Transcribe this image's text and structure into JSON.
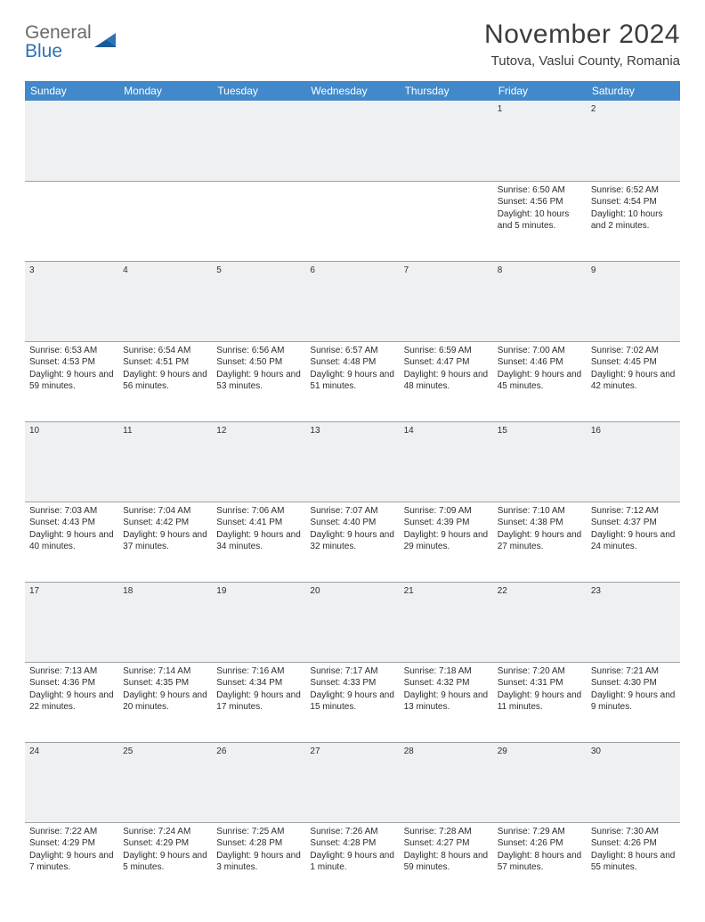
{
  "header": {
    "logo_general": "General",
    "logo_blue": "Blue",
    "month_title": "November 2024",
    "location": "Tutova, Vaslui County, Romania"
  },
  "theme": {
    "header_bg": "#4189ca",
    "header_text": "#ffffff",
    "daynum_bg": "#eef0f2",
    "border_color": "#9aa2aa",
    "logo_gray": "#6a6a6a",
    "logo_blue": "#2d73b5"
  },
  "weekdays": [
    "Sunday",
    "Monday",
    "Tuesday",
    "Wednesday",
    "Thursday",
    "Friday",
    "Saturday"
  ],
  "weeks": [
    {
      "nums": [
        "",
        "",
        "",
        "",
        "",
        "1",
        "2"
      ],
      "cells": [
        null,
        null,
        null,
        null,
        null,
        {
          "sunrise": "Sunrise: 6:50 AM",
          "sunset": "Sunset: 4:56 PM",
          "daylight": "Daylight: 10 hours and 5 minutes."
        },
        {
          "sunrise": "Sunrise: 6:52 AM",
          "sunset": "Sunset: 4:54 PM",
          "daylight": "Daylight: 10 hours and 2 minutes."
        }
      ]
    },
    {
      "nums": [
        "3",
        "4",
        "5",
        "6",
        "7",
        "8",
        "9"
      ],
      "cells": [
        {
          "sunrise": "Sunrise: 6:53 AM",
          "sunset": "Sunset: 4:53 PM",
          "daylight": "Daylight: 9 hours and 59 minutes."
        },
        {
          "sunrise": "Sunrise: 6:54 AM",
          "sunset": "Sunset: 4:51 PM",
          "daylight": "Daylight: 9 hours and 56 minutes."
        },
        {
          "sunrise": "Sunrise: 6:56 AM",
          "sunset": "Sunset: 4:50 PM",
          "daylight": "Daylight: 9 hours and 53 minutes."
        },
        {
          "sunrise": "Sunrise: 6:57 AM",
          "sunset": "Sunset: 4:48 PM",
          "daylight": "Daylight: 9 hours and 51 minutes."
        },
        {
          "sunrise": "Sunrise: 6:59 AM",
          "sunset": "Sunset: 4:47 PM",
          "daylight": "Daylight: 9 hours and 48 minutes."
        },
        {
          "sunrise": "Sunrise: 7:00 AM",
          "sunset": "Sunset: 4:46 PM",
          "daylight": "Daylight: 9 hours and 45 minutes."
        },
        {
          "sunrise": "Sunrise: 7:02 AM",
          "sunset": "Sunset: 4:45 PM",
          "daylight": "Daylight: 9 hours and 42 minutes."
        }
      ]
    },
    {
      "nums": [
        "10",
        "11",
        "12",
        "13",
        "14",
        "15",
        "16"
      ],
      "cells": [
        {
          "sunrise": "Sunrise: 7:03 AM",
          "sunset": "Sunset: 4:43 PM",
          "daylight": "Daylight: 9 hours and 40 minutes."
        },
        {
          "sunrise": "Sunrise: 7:04 AM",
          "sunset": "Sunset: 4:42 PM",
          "daylight": "Daylight: 9 hours and 37 minutes."
        },
        {
          "sunrise": "Sunrise: 7:06 AM",
          "sunset": "Sunset: 4:41 PM",
          "daylight": "Daylight: 9 hours and 34 minutes."
        },
        {
          "sunrise": "Sunrise: 7:07 AM",
          "sunset": "Sunset: 4:40 PM",
          "daylight": "Daylight: 9 hours and 32 minutes."
        },
        {
          "sunrise": "Sunrise: 7:09 AM",
          "sunset": "Sunset: 4:39 PM",
          "daylight": "Daylight: 9 hours and 29 minutes."
        },
        {
          "sunrise": "Sunrise: 7:10 AM",
          "sunset": "Sunset: 4:38 PM",
          "daylight": "Daylight: 9 hours and 27 minutes."
        },
        {
          "sunrise": "Sunrise: 7:12 AM",
          "sunset": "Sunset: 4:37 PM",
          "daylight": "Daylight: 9 hours and 24 minutes."
        }
      ]
    },
    {
      "nums": [
        "17",
        "18",
        "19",
        "20",
        "21",
        "22",
        "23"
      ],
      "cells": [
        {
          "sunrise": "Sunrise: 7:13 AM",
          "sunset": "Sunset: 4:36 PM",
          "daylight": "Daylight: 9 hours and 22 minutes."
        },
        {
          "sunrise": "Sunrise: 7:14 AM",
          "sunset": "Sunset: 4:35 PM",
          "daylight": "Daylight: 9 hours and 20 minutes."
        },
        {
          "sunrise": "Sunrise: 7:16 AM",
          "sunset": "Sunset: 4:34 PM",
          "daylight": "Daylight: 9 hours and 17 minutes."
        },
        {
          "sunrise": "Sunrise: 7:17 AM",
          "sunset": "Sunset: 4:33 PM",
          "daylight": "Daylight: 9 hours and 15 minutes."
        },
        {
          "sunrise": "Sunrise: 7:18 AM",
          "sunset": "Sunset: 4:32 PM",
          "daylight": "Daylight: 9 hours and 13 minutes."
        },
        {
          "sunrise": "Sunrise: 7:20 AM",
          "sunset": "Sunset: 4:31 PM",
          "daylight": "Daylight: 9 hours and 11 minutes."
        },
        {
          "sunrise": "Sunrise: 7:21 AM",
          "sunset": "Sunset: 4:30 PM",
          "daylight": "Daylight: 9 hours and 9 minutes."
        }
      ]
    },
    {
      "nums": [
        "24",
        "25",
        "26",
        "27",
        "28",
        "29",
        "30"
      ],
      "cells": [
        {
          "sunrise": "Sunrise: 7:22 AM",
          "sunset": "Sunset: 4:29 PM",
          "daylight": "Daylight: 9 hours and 7 minutes."
        },
        {
          "sunrise": "Sunrise: 7:24 AM",
          "sunset": "Sunset: 4:29 PM",
          "daylight": "Daylight: 9 hours and 5 minutes."
        },
        {
          "sunrise": "Sunrise: 7:25 AM",
          "sunset": "Sunset: 4:28 PM",
          "daylight": "Daylight: 9 hours and 3 minutes."
        },
        {
          "sunrise": "Sunrise: 7:26 AM",
          "sunset": "Sunset: 4:28 PM",
          "daylight": "Daylight: 9 hours and 1 minute."
        },
        {
          "sunrise": "Sunrise: 7:28 AM",
          "sunset": "Sunset: 4:27 PM",
          "daylight": "Daylight: 8 hours and 59 minutes."
        },
        {
          "sunrise": "Sunrise: 7:29 AM",
          "sunset": "Sunset: 4:26 PM",
          "daylight": "Daylight: 8 hours and 57 minutes."
        },
        {
          "sunrise": "Sunrise: 7:30 AM",
          "sunset": "Sunset: 4:26 PM",
          "daylight": "Daylight: 8 hours and 55 minutes."
        }
      ]
    }
  ]
}
